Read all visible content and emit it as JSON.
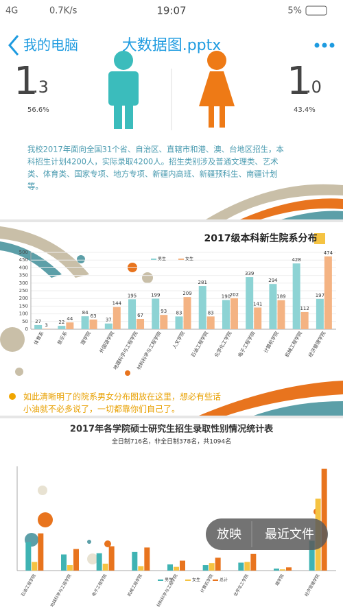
{
  "status_bar": {
    "network": "4G",
    "speed": "0.7K/s",
    "time": "19:07",
    "battery": "5%"
  },
  "nav": {
    "back": "我的电脑",
    "title": "大数据图.pptx"
  },
  "slide1": {
    "left": {
      "integer": "1",
      "decimal": ".3",
      "percent": "56.6%"
    },
    "right": {
      "integer": "1",
      "decimal": ".0",
      "percent": "43.4%"
    },
    "paragraph": [
      "我校2017年面向全国31个省、自治区、直辖市和港、澳、台地区招生，本",
      "科招生计划4200人，实际录取4200人。招生类别涉及普通文理类、艺术",
      "类、体育类、国家专项、地方专项、新疆内高班、新疆预科生、南疆计划",
      "等。"
    ]
  },
  "slide2": {
    "caption": [
      "如此清晰明了的院系男女分布图放在这里，想必有些话",
      "小油就不必多说了，一切都靠你们自己了。"
    ]
  },
  "slide3": {
    "title": "2017年各学院硕士研究生招生录取性别情况统计表",
    "subtitle": "全日制716名，非全日制378名，共1094名"
  },
  "buttons": {
    "play": "放映",
    "recent": "最近文件"
  },
  "chart_data": [
    {
      "type": "bar",
      "title": "2017级本科新生院系分布",
      "categories": [
        "体育系",
        "音乐系",
        "理学院",
        "外国语学院",
        "地理科学与工程学院",
        "材料科学与工程学院",
        "人文学院",
        "石油工程学院",
        "化学化工学院",
        "电子工程学院",
        "计算机学院",
        "机械工程学院",
        "经济管理学院"
      ],
      "series": [
        {
          "name": "男生",
          "color": "#8dd3d4",
          "values": [
            27,
            22,
            84,
            37,
            195,
            199,
            83,
            281,
            190,
            339,
            294,
            428,
            197
          ]
        },
        {
          "name": "女生",
          "color": "#f4b383",
          "values": [
            3,
            44,
            63,
            144,
            67,
            93,
            209,
            83,
            202,
            141,
            189,
            112,
            474
          ]
        }
      ],
      "ylim": [
        0,
        500
      ],
      "yticks": [
        0,
        50,
        100,
        150,
        200,
        250,
        300,
        350,
        400,
        450,
        500
      ],
      "grid": true,
      "value_labels_shown": true
    },
    {
      "type": "bar",
      "categories": [
        "石油工程学院",
        "地球科学与工程学院",
        "电子工程学院",
        "机械工程学院",
        "材料科学与工程学院",
        "计算机学院",
        "化学化工学院",
        "理学院",
        "经济管理学院"
      ],
      "series": [
        {
          "name": "男生",
          "color": "#3fb3b3",
          "values": [
            115,
            65,
            70,
            75,
            25,
            22,
            32,
            8,
            120
          ]
        },
        {
          "name": "女生",
          "color": "#f5c342",
          "values": [
            35,
            22,
            28,
            18,
            15,
            30,
            35,
            5,
            290
          ]
        },
        {
          "name": "总计",
          "color": "#e8741e",
          "values": [
            150,
            87,
            98,
            93,
            40,
            52,
            67,
            13,
            410
          ]
        }
      ],
      "ylim": [
        0,
        420
      ],
      "grid": false,
      "value_labels_shown": false
    }
  ]
}
